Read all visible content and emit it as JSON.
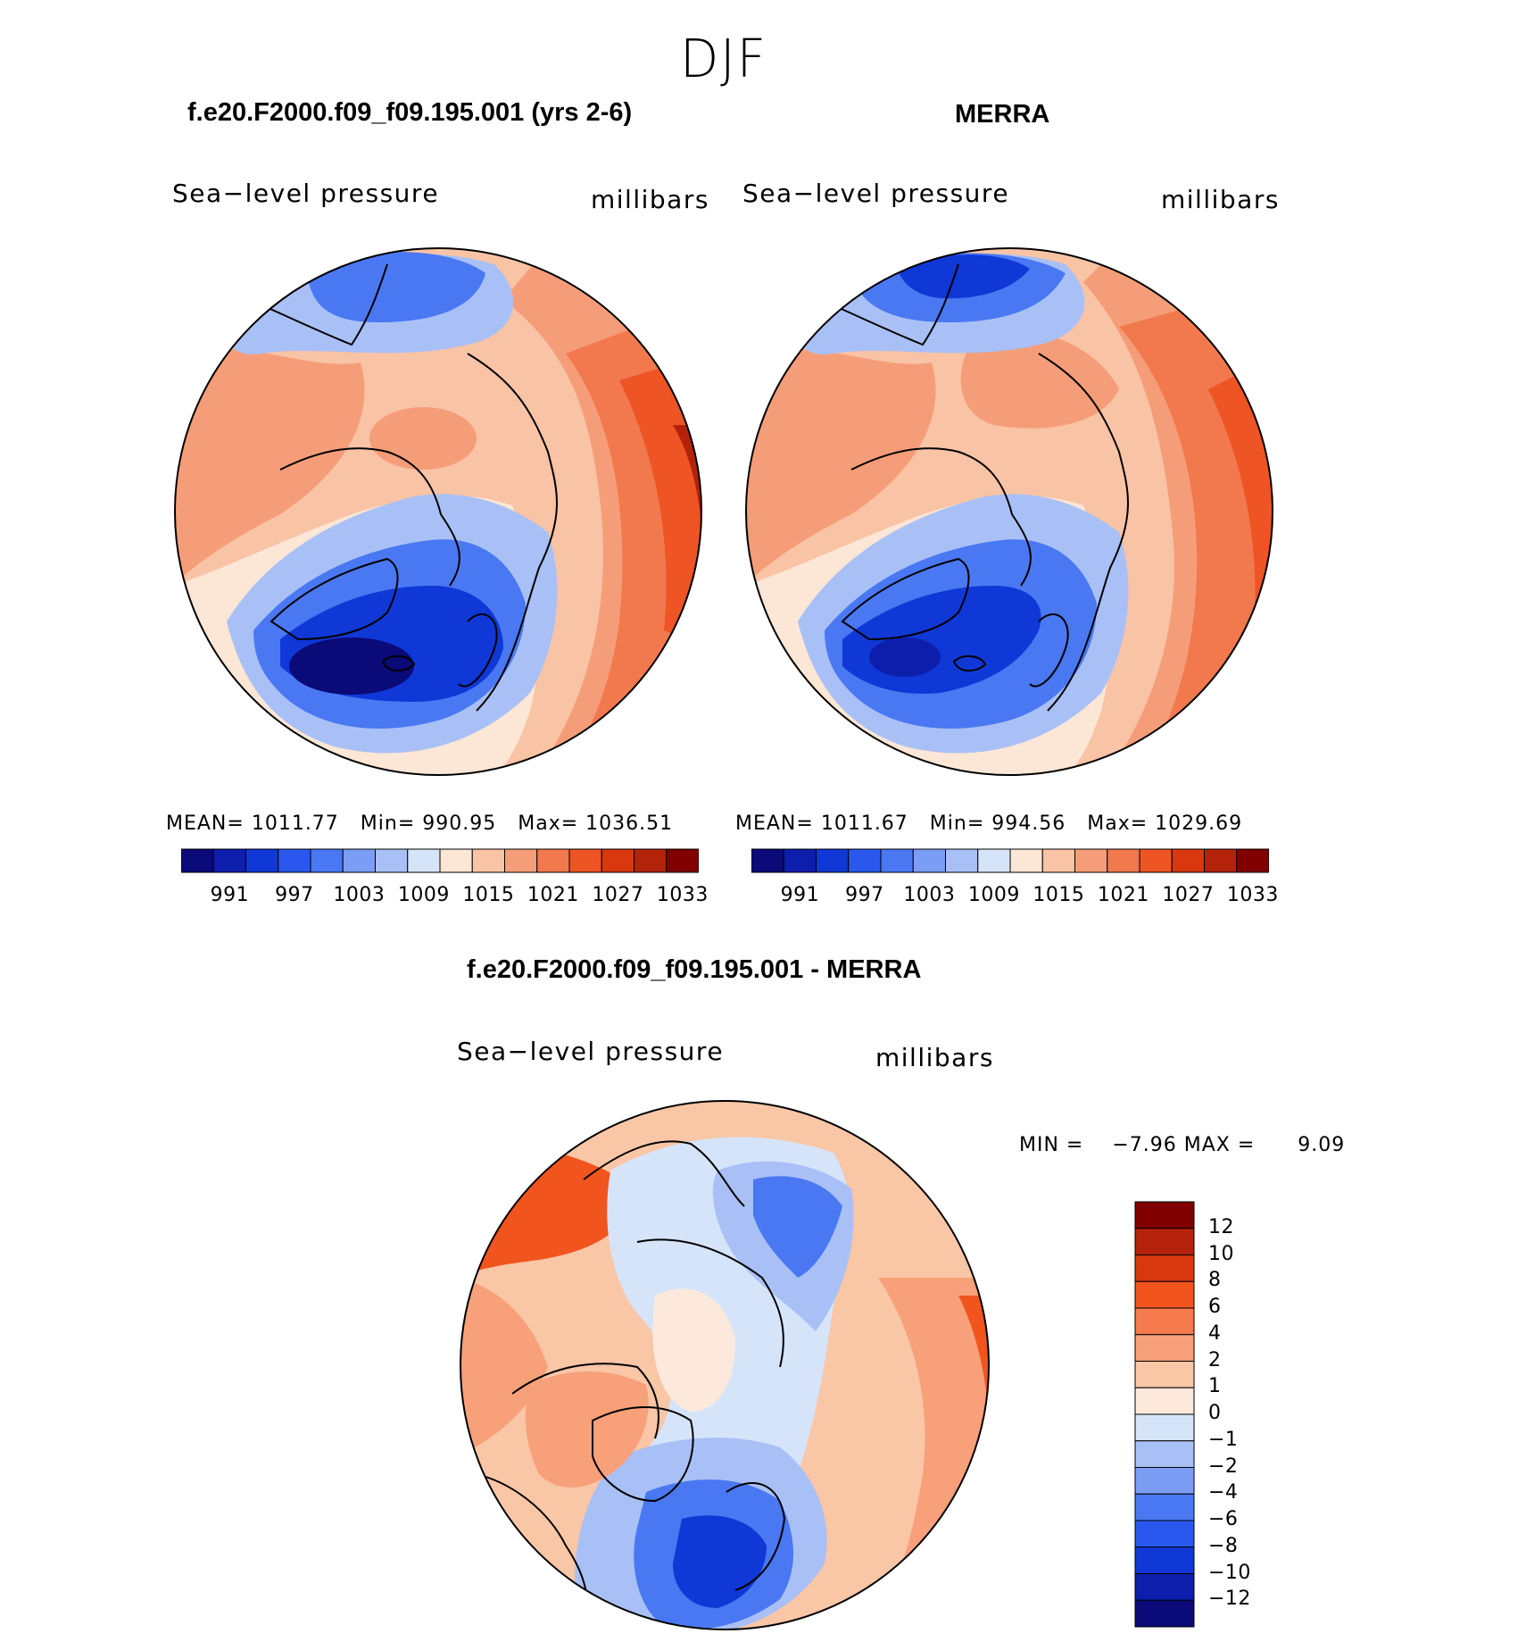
{
  "figure": {
    "title": "DJF",
    "variable_label": "Sea−level pressure",
    "units_label": "millibars"
  },
  "panels": [
    {
      "id": "model",
      "title": "f.e20.F2000.f09_f09.195.001 (yrs 2-6)",
      "mean_label": "MEAN=",
      "mean": "1011.77",
      "min_label": "Min=",
      "min": "990.95",
      "max_label": "Max=",
      "max": "1036.51"
    },
    {
      "id": "obs",
      "title": "MERRA",
      "mean_label": "MEAN=",
      "mean": "1011.67",
      "min_label": "Min=",
      "min": "994.56",
      "max_label": "Max=",
      "max": "1029.69"
    },
    {
      "id": "diff",
      "title": "f.e20.F2000.f09_f09.195.001 - MERRA",
      "stat_line": "MIN =    −7.96 MAX =      9.09"
    }
  ],
  "colorbar_abs": {
    "ticks": [
      "991",
      "997",
      "1003",
      "1009",
      "1015",
      "1021",
      "1027",
      "1033"
    ],
    "colors": [
      "#0a0a78",
      "#0c1eab",
      "#1038d6",
      "#2a58ee",
      "#4a78f2",
      "#7b9ef4",
      "#a9c0f6",
      "#d6e4fa",
      "#fce6d6",
      "#f9c3a5",
      "#f59d78",
      "#f2784e",
      "#ee5424",
      "#d9380f",
      "#b4220b",
      "#800000"
    ]
  },
  "colorbar_diff": {
    "ticks": [
      "12",
      "10",
      "8",
      "6",
      "4",
      "2",
      "1",
      "0",
      "−1",
      "−2",
      "−4",
      "−6",
      "−8",
      "−10",
      "−12"
    ],
    "colors": [
      "#800000",
      "#b4220b",
      "#d9380f",
      "#f2541e",
      "#f57a4e",
      "#f7a07a",
      "#f9c6a6",
      "#fce9dc",
      "#d6e4fa",
      "#a9c0f6",
      "#7b9ef4",
      "#4a78f2",
      "#2a58ee",
      "#1038d6",
      "#0c1eab",
      "#0a0a78"
    ]
  },
  "chart_data": [
    {
      "type": "heatmap",
      "title": "f.e20.F2000.f09_f09.195.001 (yrs 2-6)",
      "variable": "Sea-level pressure",
      "units": "millibars",
      "projection": "north polar stereographic",
      "stats": {
        "mean": 1011.77,
        "min": 990.95,
        "max": 1036.51
      },
      "contour_levels": [
        988,
        991,
        994,
        997,
        1000,
        1003,
        1006,
        1009,
        1012,
        1015,
        1018,
        1021,
        1024,
        1027,
        1030,
        1033,
        1036
      ],
      "colorbar_ticks": [
        991,
        997,
        1003,
        1009,
        1015,
        1021,
        1027,
        1033
      ]
    },
    {
      "type": "heatmap",
      "title": "MERRA",
      "variable": "Sea-level pressure",
      "units": "millibars",
      "projection": "north polar stereographic",
      "stats": {
        "mean": 1011.67,
        "min": 994.56,
        "max": 1029.69
      },
      "contour_levels": [
        988,
        991,
        994,
        997,
        1000,
        1003,
        1006,
        1009,
        1012,
        1015,
        1018,
        1021,
        1024,
        1027,
        1030,
        1033,
        1036
      ],
      "colorbar_ticks": [
        991,
        997,
        1003,
        1009,
        1015,
        1021,
        1027,
        1033
      ]
    },
    {
      "type": "heatmap",
      "title": "f.e20.F2000.f09_f09.195.001 - MERRA",
      "variable": "Sea-level pressure",
      "units": "millibars",
      "projection": "north polar stereographic",
      "stats": {
        "min": -7.96,
        "max": 9.09
      },
      "colorbar_ticks": [
        12,
        10,
        8,
        6,
        4,
        2,
        1,
        0,
        -1,
        -2,
        -4,
        -6,
        -8,
        -10,
        -12
      ]
    }
  ]
}
